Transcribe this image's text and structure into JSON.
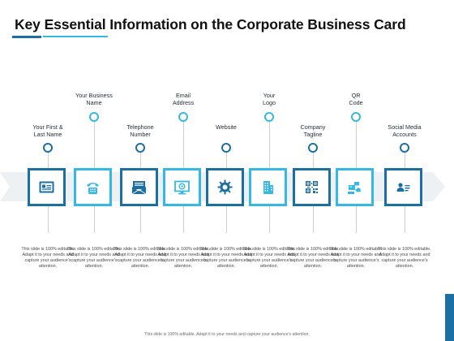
{
  "title": "Key Essential Information on the Corporate Business Card",
  "items": [
    {
      "label_line1": "Your First &",
      "label_line2": "Last Name",
      "icon": "id-card-icon",
      "desc": "This slide is 100% editable. Adapt it to your needs and capture your audience's attention."
    },
    {
      "label_line1": "Your Business",
      "label_line2": "Name",
      "icon": "telephone-icon",
      "desc": "This slide is 100% editable. Adapt it to your needs and capture your audience's attention."
    },
    {
      "label_line1": "Telephone",
      "label_line2": "Number",
      "icon": "envelope-icon",
      "desc": "This slide is 100% editable. Adapt it to your needs and capture your audience's attention."
    },
    {
      "label_line1": "Email",
      "label_line2": "Address",
      "icon": "monitor-at-icon",
      "desc": "This slide is 100% editable. Adapt it to your needs and capture your audience's attention."
    },
    {
      "label_line1": "Website",
      "label_line2": "",
      "icon": "gear-icon",
      "desc": "This slide is 100% editable. Adapt it to your needs and capture your audience's attention."
    },
    {
      "label_line1": "Your",
      "label_line2": "Logo",
      "icon": "building-icon",
      "desc": "This slide is 100% editable. Adapt it to your needs and capture your audience's attention."
    },
    {
      "label_line1": "Company",
      "label_line2": "Tagline",
      "icon": "qr-code-icon",
      "desc": "This slide is 100% editable. Adapt it to your needs and capture your audience's attention."
    },
    {
      "label_line1": "QR",
      "label_line2": "Code",
      "icon": "social-handshake-icon",
      "desc": "This slide is 100% editable. Adapt it to your needs and capture your audience's attention."
    },
    {
      "label_line1": "Social Media",
      "label_line2": "Accounts",
      "icon": "contact-card-icon",
      "desc": "This slide is 100% editable. Adapt it to your needs and capture your audience's attention."
    }
  ],
  "footer": "This slide is 100% editable. Adapt it to your needs and capture your audience's attention.",
  "colors": {
    "dark": "#1c6fa3",
    "light": "#36b8e6",
    "band": "#eef1f4"
  }
}
